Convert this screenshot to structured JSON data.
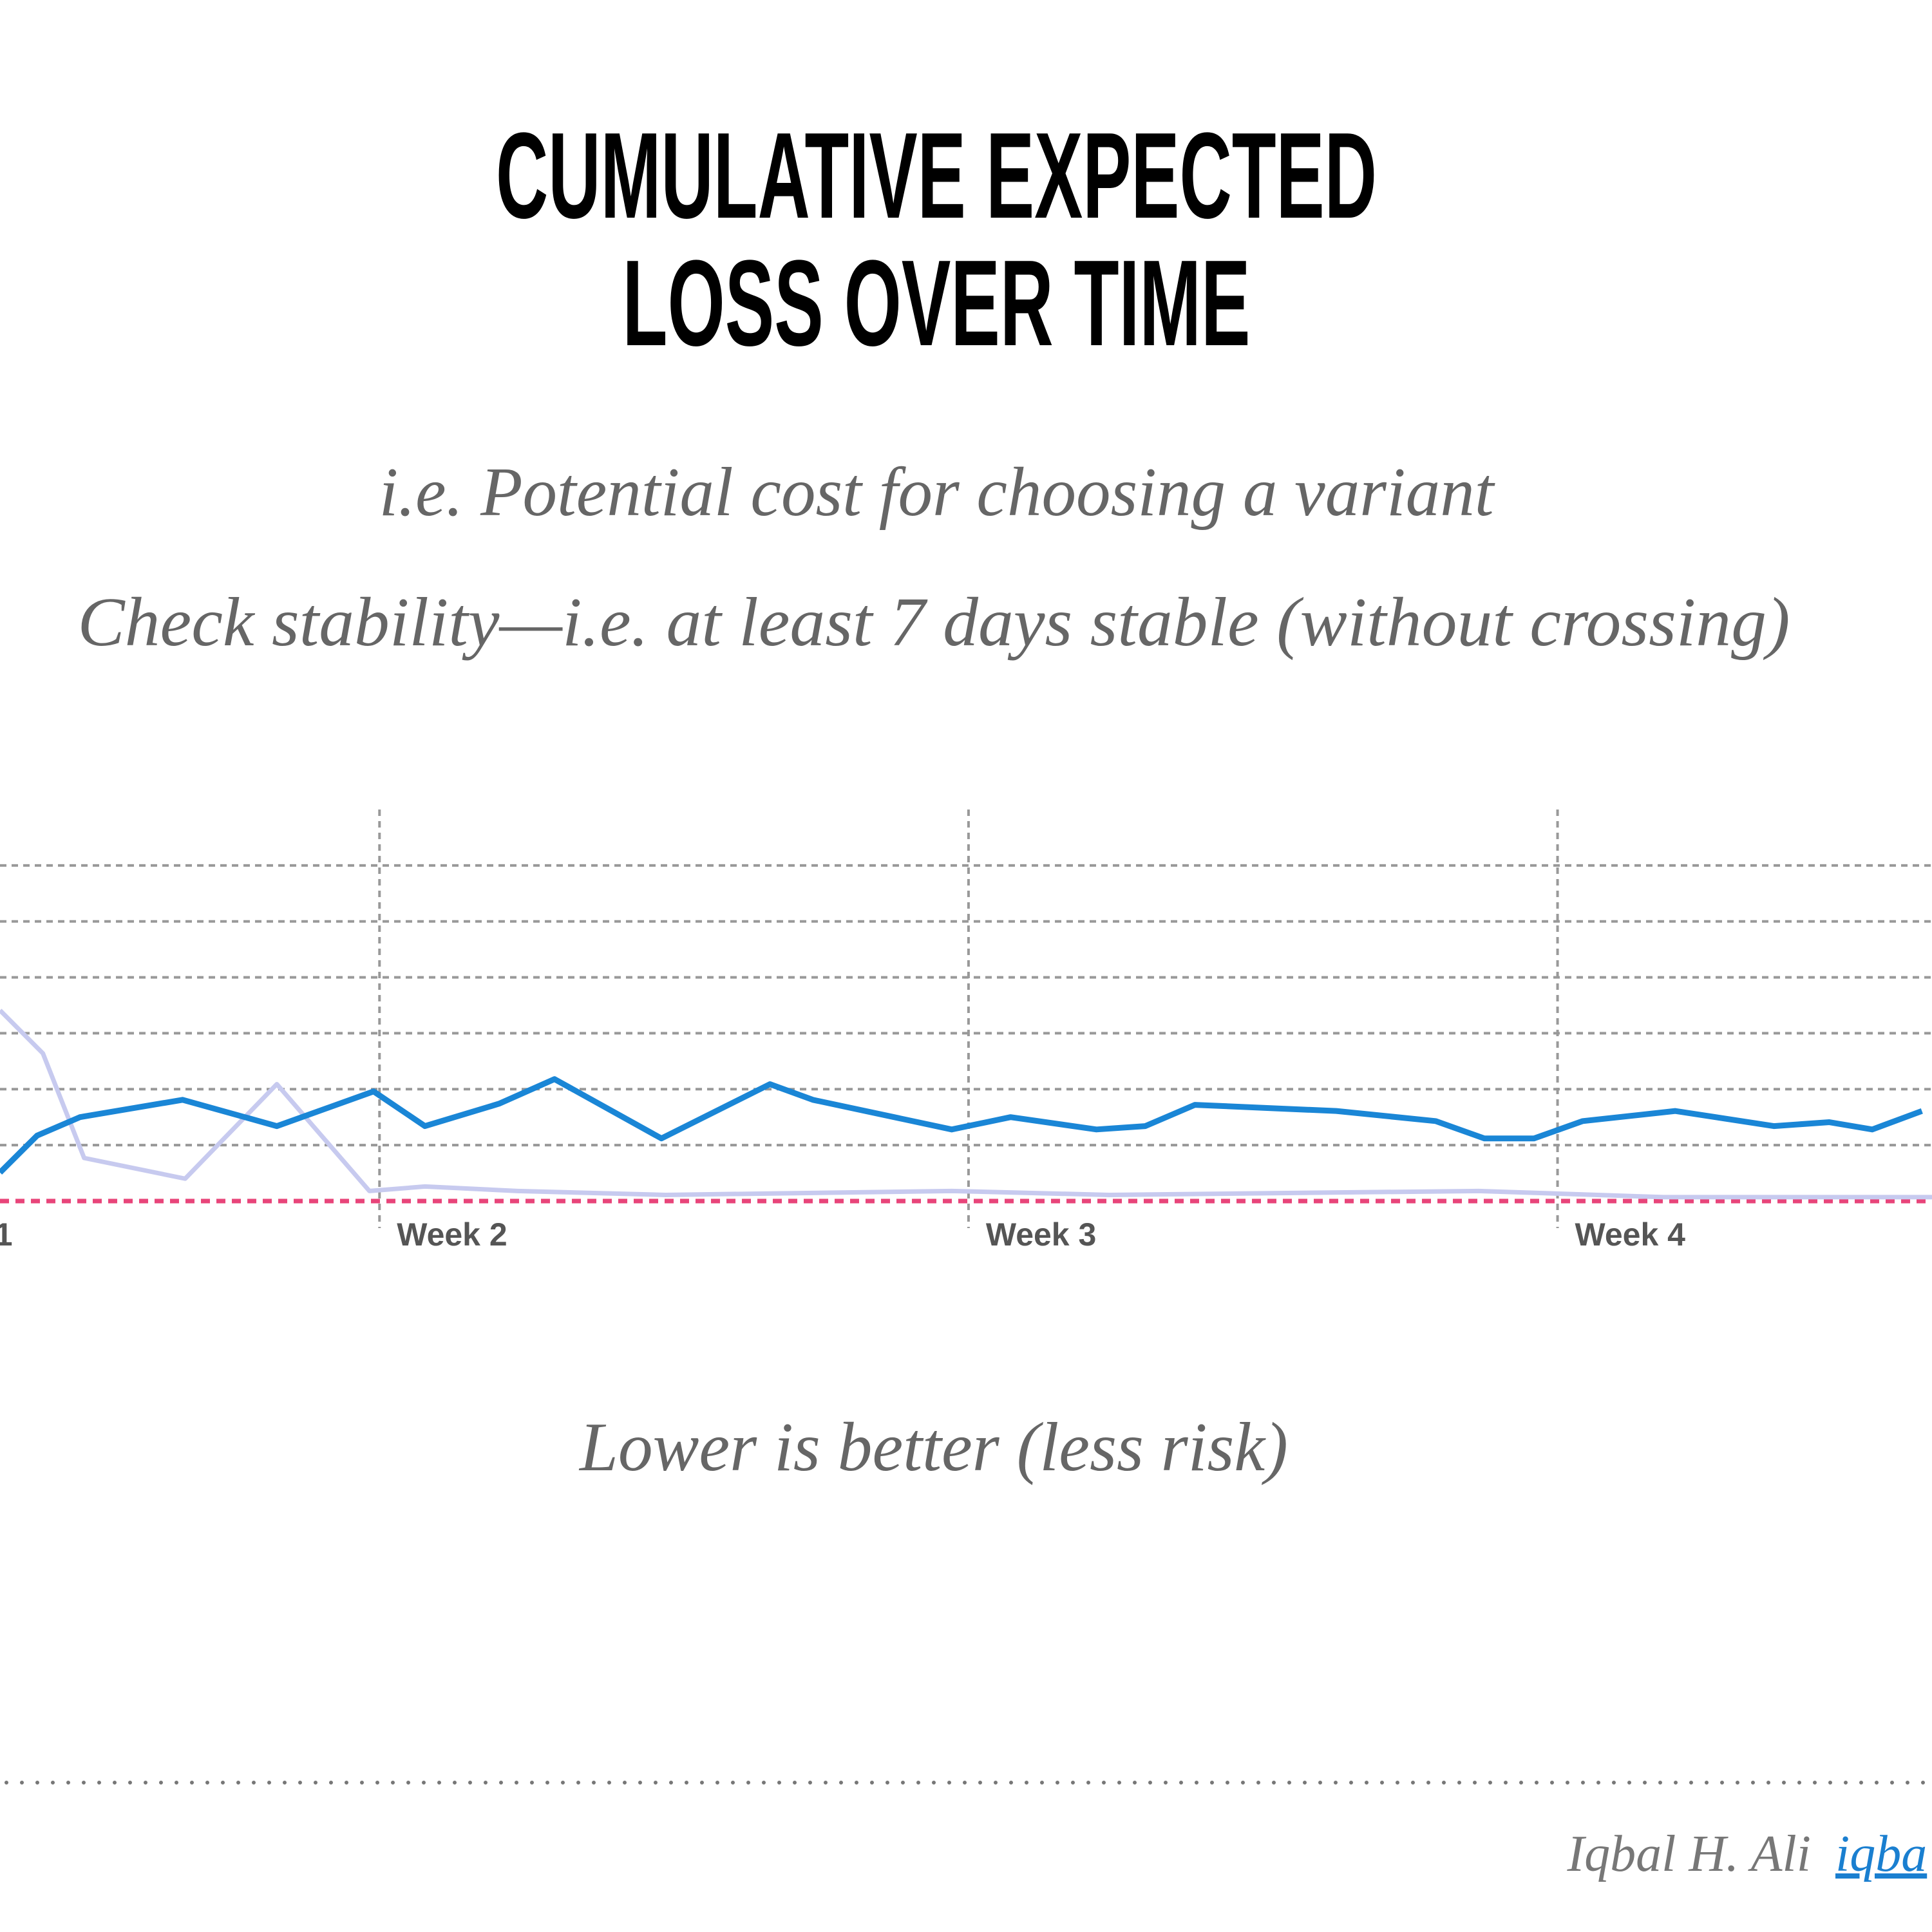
{
  "chart_data": {
    "type": "line",
    "title": [
      "CUMULATIVE EXPECTED",
      "LOSS OVER TIME"
    ],
    "subtitle": [
      "i.e. Potential cost for choosing a variant",
      "Check stability—i.e. at least 7 days stable (without crossing)"
    ],
    "annotation": "Lower is better (less risk)",
    "xlim": [
      2.49,
      25.45
    ],
    "ylim": [
      0,
      7
    ],
    "xticks": [
      {
        "value": 2.22,
        "label": "1"
      },
      {
        "value": 7,
        "label": "Week 2"
      },
      {
        "value": 14,
        "label": "Week 3"
      },
      {
        "value": 21,
        "label": "Week 4"
      }
    ],
    "ygrid": [
      1,
      2,
      3,
      4,
      5,
      6
    ],
    "reference_line": {
      "value": 0,
      "color": "#e8457a"
    },
    "series": [
      {
        "color": "#c7caef",
        "x": [
          2.49,
          3.0,
          3.49,
          4.69,
          5.78,
          6.88,
          7.54,
          8.64,
          10.4,
          13.8,
          15.67,
          20.06,
          22.26,
          25.45
        ],
        "values": [
          3.41,
          2.64,
          0.77,
          0.4,
          2.09,
          0.18,
          0.26,
          0.18,
          0.11,
          0.18,
          0.11,
          0.18,
          0.07,
          0.07
        ]
      },
      {
        "color": "#1a86d6",
        "x": [
          2.49,
          2.93,
          3.44,
          4.66,
          5.78,
          6.93,
          7.54,
          8.42,
          9.08,
          10.35,
          11.64,
          12.15,
          13.8,
          14.5,
          15.52,
          16.1,
          16.69,
          18.37,
          19.55,
          20.13,
          20.72,
          21.3,
          22.4,
          23.57,
          24.23,
          24.74,
          25.33
        ],
        "values": [
          0.51,
          1.17,
          1.5,
          1.81,
          1.34,
          1.96,
          1.34,
          1.74,
          2.18,
          1.12,
          2.09,
          1.81,
          1.28,
          1.5,
          1.28,
          1.34,
          1.72,
          1.61,
          1.43,
          1.12,
          1.12,
          1.43,
          1.61,
          1.34,
          1.41,
          1.28,
          1.61
        ]
      }
    ]
  },
  "footer": {
    "author": "Iqbal H. Ali",
    "link": "iqba"
  }
}
